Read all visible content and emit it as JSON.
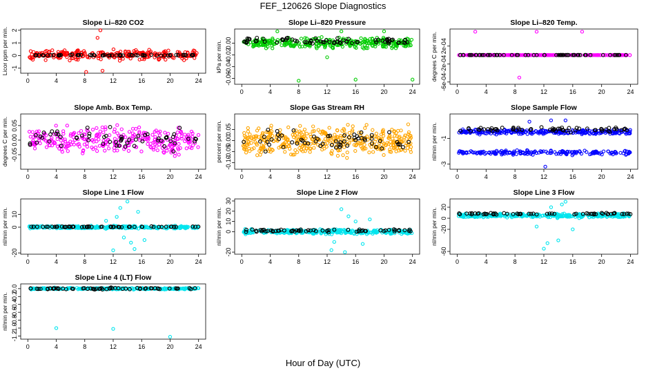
{
  "figure": {
    "title": "FEF_120626  Slope Diagnostics",
    "xlabel": "Hour of Day (UTC)"
  },
  "chart_data": [
    {
      "type": "scatter",
      "title": "Slope Li–820 CO2",
      "ylabel": "Licor ppm per min.",
      "xlim": [
        -1,
        25
      ],
      "ylim": [
        -1.4,
        2.1
      ],
      "yticks": [
        -1,
        0,
        1,
        2
      ],
      "ytick_labels": [
        "-1",
        "0",
        "1",
        "2"
      ],
      "xticks": [
        0,
        4,
        8,
        12,
        16,
        20,
        24
      ],
      "series": [
        {
          "color": "#ff0000",
          "center": 0.05,
          "spread": 0.55,
          "n": 260,
          "outliers": [
            [
              10.2,
              2.0
            ],
            [
              9.8,
              1.4
            ],
            [
              8.2,
              -1.3
            ],
            [
              10.5,
              -1.2
            ]
          ]
        },
        {
          "color": "#000000",
          "center": 0.03,
          "spread": 0.05,
          "n": 60,
          "outliers": []
        }
      ]
    },
    {
      "type": "scatter",
      "title": "Slope Li–820 Pressure",
      "ylabel": "kPa per min.",
      "xlim": [
        -1,
        25
      ],
      "ylim": [
        -0.07,
        0.024
      ],
      "yticks": [
        -0.06,
        -0.04,
        -0.02,
        0.0
      ],
      "ytick_labels": [
        "-0.06",
        "-0.04",
        "-0.02",
        "0.00"
      ],
      "xticks": [
        0,
        4,
        8,
        12,
        16,
        20,
        24
      ],
      "series": [
        {
          "color": "#00cc00",
          "center": 0.0,
          "spread": 0.012,
          "n": 320,
          "outliers": [
            [
              8,
              -0.064
            ],
            [
              16,
              -0.062
            ],
            [
              24,
              -0.062
            ],
            [
              12,
              -0.024
            ],
            [
              14,
              0.02
            ],
            [
              20,
              0.02
            ],
            [
              5,
              0.02
            ]
          ]
        },
        {
          "color": "#000000",
          "center": 0.003,
          "spread": 0.008,
          "n": 70,
          "outliers": []
        }
      ]
    },
    {
      "type": "scatter",
      "title": "Slope Li–820 Temp.",
      "ylabel": "degrees C per min.",
      "xlim": [
        -1,
        25
      ],
      "ylim": [
        -0.00065,
        0.00058
      ],
      "yticks": [
        -0.0006,
        -0.0002,
        0.0002
      ],
      "ytick_labels": [
        "-6e-04",
        "-2e-04",
        "2e-04"
      ],
      "xticks": [
        0,
        4,
        8,
        12,
        16,
        20,
        24
      ],
      "series": [
        {
          "color": "#ff00ff",
          "center": 0.0,
          "spread": 0.0,
          "n": 240,
          "outliers": [
            [
              2.5,
              0.00052
            ],
            [
              11,
              0.00052
            ],
            [
              17.3,
              0.00052
            ],
            [
              8.6,
              -0.0005
            ]
          ]
        },
        {
          "color": "#000000",
          "center": 0.0,
          "spread": 0.0,
          "n": 60,
          "outliers": []
        }
      ]
    },
    {
      "type": "scatter",
      "title": "Slope Amb. Box Temp.",
      "ylabel": "degrees C per min.",
      "xlim": [
        -1,
        25
      ],
      "ylim": [
        -0.1,
        0.09
      ],
      "yticks": [
        -0.05,
        0.0,
        0.05
      ],
      "ytick_labels": [
        "-0.05",
        "0.00",
        "0.05"
      ],
      "xticks": [
        0,
        4,
        8,
        12,
        16,
        20,
        24
      ],
      "series": [
        {
          "color": "#ff00ff",
          "center": 0.0,
          "spread": 0.07,
          "n": 300,
          "outliers": []
        },
        {
          "color": "#000000",
          "center": 0.005,
          "spread": 0.05,
          "n": 60,
          "outliers": []
        }
      ]
    },
    {
      "type": "scatter",
      "title": "Slope Gas Stream RH",
      "ylabel": "percent per min.",
      "xlim": [
        -1,
        25
      ],
      "ylim": [
        -0.13,
        0.12
      ],
      "yticks": [
        -0.1,
        -0.05,
        0.0,
        0.05
      ],
      "ytick_labels": [
        "-0.10",
        "-0.05",
        "0.00",
        "0.05"
      ],
      "xticks": [
        0,
        4,
        8,
        12,
        16,
        20,
        24
      ],
      "series": [
        {
          "color": "#ffa500",
          "center": 0.0,
          "spread": 0.09,
          "n": 420,
          "outliers": []
        },
        {
          "color": "#000000",
          "center": 0.0,
          "spread": 0.07,
          "n": 60,
          "outliers": []
        }
      ]
    },
    {
      "type": "scatter",
      "title": "Slope Sample Flow",
      "ylabel": "nl/min per min.",
      "xlim": [
        -1,
        25
      ],
      "ylim": [
        -3.4,
        0.9
      ],
      "yticks": [
        -3,
        -1
      ],
      "ytick_labels": [
        "-3",
        "-1"
      ],
      "xticks": [
        0,
        4,
        8,
        12,
        16,
        20,
        24
      ],
      "series": [
        {
          "color": "#0000ff",
          "center": -0.5,
          "spread": 0.25,
          "n": 260,
          "outliers": [
            [
              12.2,
              -3.2
            ],
            [
              13,
              0.4
            ],
            [
              15,
              0.4
            ],
            [
              10,
              0.3
            ]
          ]
        },
        {
          "color": "#0000ff",
          "center": -2.1,
          "spread": 0.25,
          "n": 180,
          "outliers": []
        },
        {
          "color": "#000000",
          "center": -0.3,
          "spread": 0.3,
          "n": 60,
          "outliers": []
        }
      ]
    },
    {
      "type": "scatter",
      "title": "Slope Line 1 Flow",
      "ylabel": "nl/min per min.",
      "xlim": [
        -1,
        25
      ],
      "ylim": [
        -21,
        22
      ],
      "yticks": [
        -20,
        0,
        10
      ],
      "ytick_labels": [
        "-20",
        "0",
        "10"
      ],
      "xticks": [
        0,
        4,
        8,
        12,
        16,
        20,
        24
      ],
      "series": [
        {
          "color": "#00e5ee",
          "center": 0.0,
          "spread": 1.5,
          "n": 320,
          "outliers": [
            [
              12,
              -18
            ],
            [
              13,
              15
            ],
            [
              14,
              20
            ],
            [
              15,
              -17
            ],
            [
              16.4,
              -10
            ],
            [
              11,
              5
            ],
            [
              13.5,
              -8
            ],
            [
              15.5,
              12
            ],
            [
              12.5,
              8
            ],
            [
              14.5,
              -12
            ]
          ]
        },
        {
          "color": "#000000",
          "center": 0.3,
          "spread": 0.4,
          "n": 60,
          "outliers": []
        }
      ]
    },
    {
      "type": "scatter",
      "title": "Slope Line 2 Flow",
      "ylabel": "nl/min per min.",
      "xlim": [
        -1,
        25
      ],
      "ylim": [
        -22,
        32
      ],
      "yticks": [
        -20,
        0,
        10,
        20,
        30
      ],
      "ytick_labels": [
        "-20",
        "0",
        "10",
        "20",
        "30"
      ],
      "xticks": [
        0,
        4,
        8,
        12,
        16,
        20,
        24
      ],
      "series": [
        {
          "color": "#00e5ee",
          "center": 0.0,
          "spread": 3,
          "n": 340,
          "outliers": [
            [
              14,
              22
            ],
            [
              12.6,
              -18
            ],
            [
              17,
              -12
            ],
            [
              15,
              15
            ],
            [
              13,
              -10
            ],
            [
              16,
              10
            ],
            [
              14.5,
              -20
            ],
            [
              18,
              12
            ]
          ]
        },
        {
          "color": "#000000",
          "center": 1,
          "spread": 2,
          "n": 60,
          "outliers": []
        }
      ]
    },
    {
      "type": "scatter",
      "title": "Slope Line 3 Flow",
      "ylabel": "nl/min per min.",
      "xlim": [
        -1,
        25
      ],
      "ylim": [
        -65,
        35
      ],
      "yticks": [
        -60,
        -20,
        0,
        20
      ],
      "ytick_labels": [
        "-60",
        "-20",
        "0",
        "20"
      ],
      "xticks": [
        0,
        4,
        8,
        12,
        16,
        20,
        24
      ],
      "series": [
        {
          "color": "#00e5ee",
          "center": 5,
          "spread": 5,
          "n": 340,
          "outliers": [
            [
              12,
              -55
            ],
            [
              14,
              -40
            ],
            [
              15,
              30
            ],
            [
              13,
              20
            ],
            [
              16,
              -20
            ],
            [
              11,
              -15
            ],
            [
              14.5,
              25
            ],
            [
              12.5,
              -45
            ]
          ]
        },
        {
          "color": "#000000",
          "center": 8,
          "spread": 2,
          "n": 60,
          "outliers": []
        }
      ]
    },
    {
      "type": "scatter",
      "title": "Slope Line 4 (LT) Flow",
      "ylabel": "nl/min per min.",
      "xlim": [
        -1,
        25
      ],
      "ylim": [
        -1.28,
        0.12
      ],
      "yticks": [
        -1.2,
        -1.0,
        -0.8,
        -0.6,
        -0.4,
        -0.2,
        0.0
      ],
      "ytick_labels": [
        "-1.2",
        "-1.0",
        "-0.8",
        "-0.6",
        "-0.4",
        "-0.2",
        "0.0"
      ],
      "xticks": [
        0,
        4,
        8,
        12,
        16,
        20,
        24
      ],
      "series": [
        {
          "color": "#00e5ee",
          "center": 0.0,
          "spread": 0.03,
          "n": 300,
          "outliers": [
            [
              4,
              -1.0
            ],
            [
              12,
              -1.02
            ],
            [
              20,
              -1.22
            ]
          ]
        },
        {
          "color": "#000000",
          "center": 0.0,
          "spread": 0.03,
          "n": 60,
          "outliers": []
        }
      ]
    }
  ]
}
